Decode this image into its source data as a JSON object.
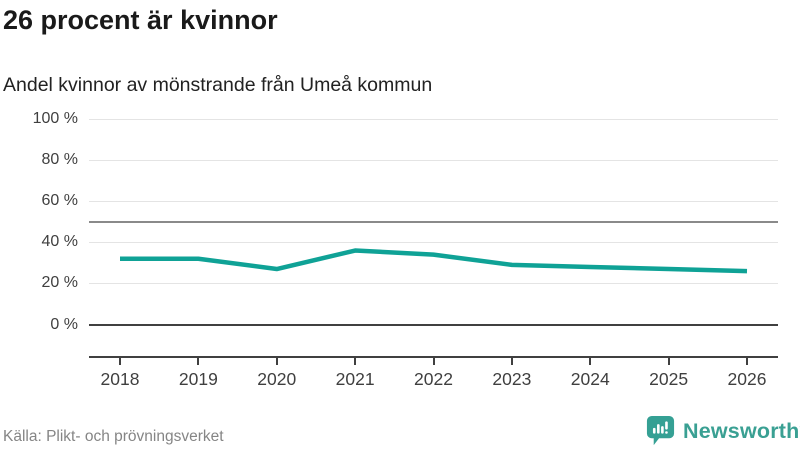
{
  "header": {
    "title": "26 procent är kvinnor",
    "subtitle": "Andel kvinnor av mönstrande från Umeå kommun"
  },
  "chart_data": {
    "type": "line",
    "title": "26 procent är kvinnor",
    "subtitle": "Andel kvinnor av mönstrande från Umeå kommun",
    "categories": [
      "2018",
      "2019",
      "2020",
      "2021",
      "2022",
      "2023",
      "2024",
      "2025",
      "2026"
    ],
    "series": [
      {
        "name": "Andel kvinnor av mönstrande",
        "values": [
          32,
          32,
          27,
          36,
          34,
          29,
          28,
          27,
          26
        ]
      }
    ],
    "xlabel": "",
    "ylabel": "",
    "ylim": [
      0,
      100
    ],
    "yticks": [
      {
        "label": "100 %",
        "value": 100
      },
      {
        "label": "80 %",
        "value": 80
      },
      {
        "label": "60 %",
        "value": 60
      },
      {
        "label": "40 %",
        "value": 40
      },
      {
        "label": "20 %",
        "value": 20
      },
      {
        "label": "0 %",
        "value": 0
      }
    ],
    "reference_line": {
      "value": 50
    },
    "grid": "horizontal",
    "legend": "none"
  },
  "footer": {
    "source": "Källa: Plikt- och prövningsverket",
    "brand": "Newsworthy"
  },
  "colors": {
    "accent_teal": "#0fa296",
    "brand_teal": "#3aa093",
    "title_text": "#1a1a1a",
    "axis_text": "#3f3f3f",
    "muted_text": "#858585",
    "gridline": "#e4e4e4",
    "reference_line": "#8a8a8a",
    "zero_line": "#404040"
  },
  "icons": {
    "brand_logo": "speech-bubble-bar-chart-icon"
  }
}
